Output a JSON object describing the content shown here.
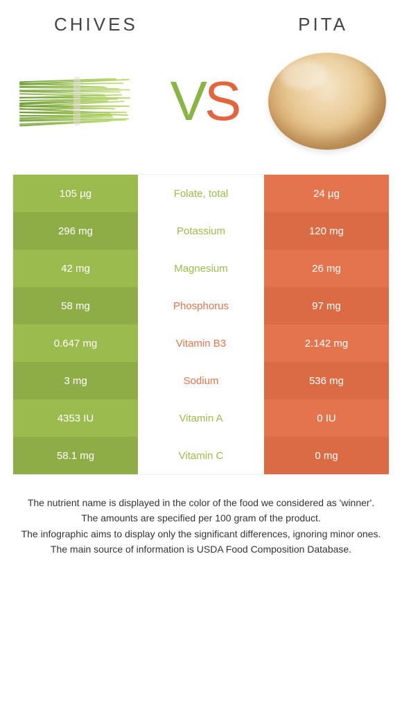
{
  "colors": {
    "green_light": "#9bbb4e",
    "green_dark": "#8fad47",
    "orange_light": "#e3754e",
    "orange_dark": "#d96b45",
    "chive_low": "#6a9a2e",
    "chive_high": "#b9d86a"
  },
  "titles": {
    "left": "CHIVES",
    "right": "PITA"
  },
  "vs": {
    "v": "V",
    "s": "S"
  },
  "rows": [
    {
      "left": "105 µg",
      "label": "Folate, total",
      "right": "24 µg",
      "winner": "left"
    },
    {
      "left": "296 mg",
      "label": "Potassium",
      "right": "120 mg",
      "winner": "left"
    },
    {
      "left": "42 mg",
      "label": "Magnesium",
      "right": "26 mg",
      "winner": "left"
    },
    {
      "left": "58 mg",
      "label": "Phosphorus",
      "right": "97 mg",
      "winner": "right"
    },
    {
      "left": "0.647 mg",
      "label": "Vitamin B3",
      "right": "2.142 mg",
      "winner": "right"
    },
    {
      "left": "3 mg",
      "label": "Sodium",
      "right": "536 mg",
      "winner": "right"
    },
    {
      "left": "4353 IU",
      "label": "Vitamin A",
      "right": "0 IU",
      "winner": "left"
    },
    {
      "left": "58.1 mg",
      "label": "Vitamin C",
      "right": "0 mg",
      "winner": "left"
    }
  ],
  "footer": [
    "The nutrient name is displayed in the color of the food we considered as 'winner'.",
    "The amounts are specified per 100 gram of the product.",
    "The infographic aims to display only the significant differences, ignoring minor ones.",
    "The main source of information is USDA Food Composition Database."
  ],
  "chive_stalks": 28
}
